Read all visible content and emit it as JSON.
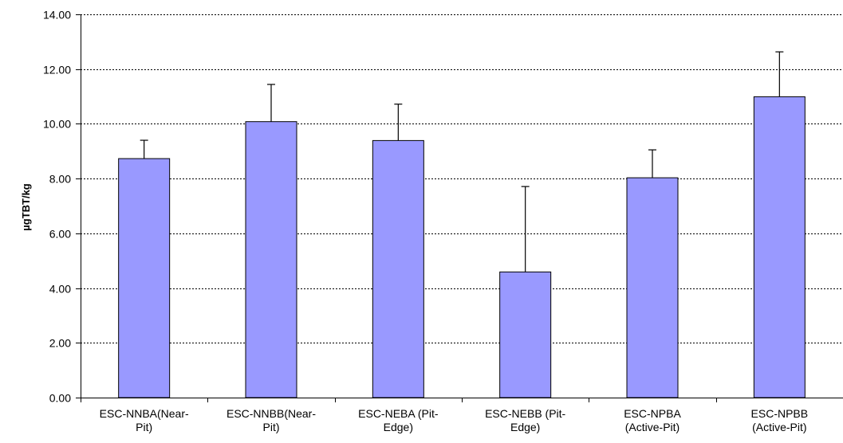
{
  "chart_data": {
    "type": "bar",
    "title": "",
    "xlabel": "",
    "ylabel": "µgTBT/kg",
    "ylim": [
      0,
      14
    ],
    "ytick_step": 2,
    "ytick_labels": [
      "0.00",
      "2.00",
      "4.00",
      "6.00",
      "8.00",
      "10.00",
      "12.00",
      "14.00"
    ],
    "grid": "horizontal dashed",
    "legend": "none",
    "categories": [
      [
        "ESC-NNBA(Near-",
        "Pit)"
      ],
      [
        "ESC-NNBB(Near-",
        "Pit)"
      ],
      [
        "ESC-NEBA (Pit-",
        "Edge)"
      ],
      [
        "ESC-NEBB (Pit-",
        "Edge)"
      ],
      [
        "ESC-NPBA",
        "(Active-Pit)"
      ],
      [
        "ESC-NPBB",
        "(Active-Pit)"
      ]
    ],
    "values": [
      8.73,
      10.08,
      9.39,
      4.59,
      8.03,
      10.99
    ],
    "error_upper": [
      0.67,
      1.36,
      1.33,
      3.12,
      1.02,
      1.64
    ],
    "colors": {
      "bar_fill": "#9999ff",
      "bar_stroke": "#000000",
      "grid": "#000000",
      "axis": "#000000"
    }
  }
}
